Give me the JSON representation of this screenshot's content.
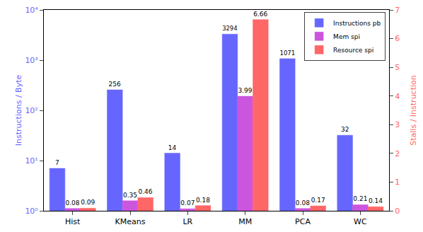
{
  "chart_data": {
    "type": "bar",
    "categories": [
      "Hist",
      "KMeans",
      "LR",
      "MM",
      "PCA",
      "WC"
    ],
    "series": [
      {
        "name": "Instructions pb",
        "color": "#6666ff",
        "values": [
          7,
          256,
          14,
          3294,
          1071,
          32
        ]
      },
      {
        "name": "Mem spi",
        "color": "#cc55dd",
        "values": [
          0.08,
          0.35,
          0.07,
          3.99,
          0.08,
          0.21
        ],
        "axis": "y2"
      },
      {
        "name": "Resource spi",
        "color": "#ff6666",
        "values": [
          0.09,
          0.46,
          0.18,
          6.66,
          0.17,
          0.14
        ],
        "axis": "y2"
      }
    ],
    "y_label": "Instructions / Byte",
    "y2_label": "Stalls / Instruction",
    "ylim": [
      1,
      10000
    ],
    "yticks": [
      {
        "value": 1,
        "label": "10⁰"
      },
      {
        "value": 10,
        "label": "10¹"
      },
      {
        "value": 100,
        "label": "10²"
      },
      {
        "value": 1000,
        "label": "10³"
      },
      {
        "value": 10000,
        "label": "10⁴"
      }
    ],
    "y2lim": [
      0,
      7
    ],
    "y2ticks": [
      0,
      1,
      2,
      3,
      4,
      5,
      6,
      7
    ],
    "log": "y",
    "data_labels": true,
    "legend": "upper right",
    "grid": false
  }
}
